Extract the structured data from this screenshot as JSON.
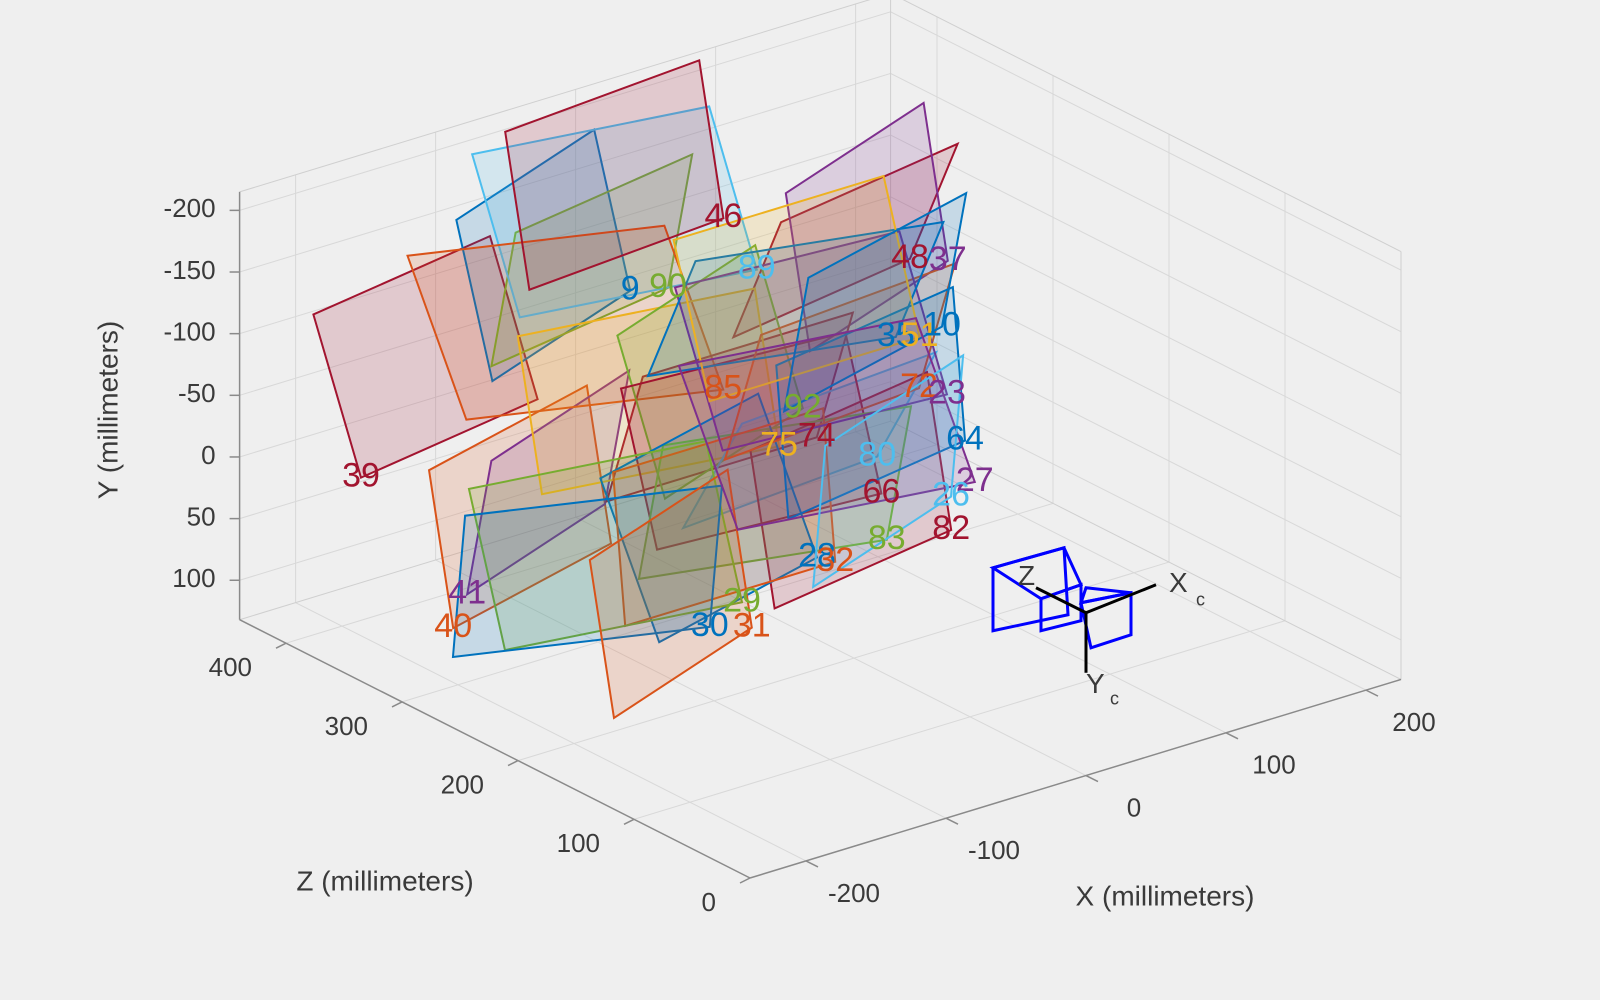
{
  "chart_data": {
    "type": "extrinsics3d",
    "xlabel": "X (millimeters)",
    "ylabel": "Y (millimeters)",
    "zlabel": "Z (millimeters)",
    "xlim": [
      -240,
      225
    ],
    "ylim": [
      -215,
      132
    ],
    "zlim": [
      0,
      440
    ],
    "xticks": [
      -200,
      -100,
      0,
      100,
      200
    ],
    "yticks": [
      -200,
      -150,
      -100,
      -50,
      0,
      50,
      100
    ],
    "zticks": [
      0,
      100,
      200,
      300,
      400
    ],
    "grid": true,
    "y_reversed": true,
    "board_size": [
      150,
      120
    ],
    "camera": {
      "origin": [
        0,
        0,
        0
      ],
      "color": "#0000ff",
      "z_label": "Z",
      "x_label": "X",
      "y_label": "Y",
      "subscript": "c"
    },
    "boards": [
      {
        "label": "39",
        "origin": [
          -203,
          1,
          380
        ],
        "tilt": [
          10,
          20
        ],
        "color": "#A2142F"
      },
      {
        "label": "40",
        "origin": [
          -162,
          123,
          350
        ],
        "tilt": [
          15,
          10
        ],
        "color": "#D95319"
      },
      {
        "label": "41",
        "origin": [
          -152,
          99,
          350
        ],
        "tilt": [
          20,
          -10
        ],
        "color": "#7E2F8E"
      },
      {
        "label": "9",
        "origin": [
          -77,
          -145,
          300
        ],
        "tilt": [
          200,
          15
        ],
        "color": "#0072BD"
      },
      {
        "label": "90",
        "origin": [
          -50,
          -138,
          300
        ],
        "tilt": [
          190,
          -10
        ],
        "color": "#77AC30"
      },
      {
        "label": "89",
        "origin": [
          -28,
          -169,
          250
        ],
        "tilt": [
          170,
          20
        ],
        "color": "#4DBEEE"
      },
      {
        "label": "48",
        "origin": [
          40,
          -178,
          200
        ],
        "tilt": [
          190,
          -20
        ],
        "color": "#A2142F"
      },
      {
        "label": "37",
        "origin": [
          67,
          -167,
          200
        ],
        "tilt": [
          200,
          10
        ],
        "color": "#7E2F8E"
      },
      {
        "label": "85",
        "origin": [
          -52,
          -80,
          250
        ],
        "tilt": [
          160,
          25
        ],
        "color": "#D95319"
      },
      {
        "label": "74",
        "origin": [
          -10,
          -41,
          220
        ],
        "tilt": [
          180,
          -15
        ],
        "color": "#A2142F"
      },
      {
        "label": "75",
        "origin": [
          -37,
          -43,
          220
        ],
        "tilt": [
          170,
          10
        ],
        "color": "#EDB120"
      },
      {
        "label": "92",
        "origin": [
          -20,
          -68,
          220
        ],
        "tilt": [
          200,
          20
        ],
        "color": "#77AC30"
      },
      {
        "label": "80",
        "origin": [
          0,
          -41,
          180
        ],
        "tilt": [
          185,
          -25
        ],
        "color": "#4DBEEE"
      },
      {
        "label": "66",
        "origin": [
          3,
          -10,
          180
        ],
        "tilt": [
          175,
          15
        ],
        "color": "#A2142F"
      },
      {
        "label": "82",
        "origin": [
          28,
          14,
          150
        ],
        "tilt": [
          190,
          10
        ],
        "color": "#A2142F"
      },
      {
        "label": "83",
        "origin": [
          -18,
          6,
          150
        ],
        "tilt": [
          165,
          -10
        ],
        "color": "#77AC30"
      },
      {
        "label": "28",
        "origin": [
          -43,
          26,
          180
        ],
        "tilt": [
          195,
          25
        ],
        "color": "#0072BD"
      },
      {
        "label": "32",
        "origin": [
          -30,
          34,
          180
        ],
        "tilt": [
          180,
          5
        ],
        "color": "#D95319"
      },
      {
        "label": "29",
        "origin": [
          -80,
          59,
          200
        ],
        "tilt": [
          170,
          15
        ],
        "color": "#77AC30"
      },
      {
        "label": "30",
        "origin": [
          -103,
          71,
          200
        ],
        "tilt": [
          160,
          -5
        ],
        "color": "#0072BD"
      },
      {
        "label": "31",
        "origin": [
          -73,
          82,
          200
        ],
        "tilt": [
          200,
          10
        ],
        "color": "#D95319"
      },
      {
        "label": "72",
        "origin": [
          5,
          -109,
          150
        ],
        "tilt": [
          185,
          -15
        ],
        "color": "#D95319"
      },
      {
        "label": "23",
        "origin": [
          25,
          -97,
          150
        ],
        "tilt": [
          175,
          20
        ],
        "color": "#7E2F8E"
      },
      {
        "label": "64",
        "origin": [
          13,
          -78,
          120
        ],
        "tilt": [
          190,
          5
        ],
        "color": "#0072BD"
      },
      {
        "label": "35",
        "origin": [
          5,
          -141,
          170
        ],
        "tilt": [
          165,
          -20
        ],
        "color": "#0072BD"
      },
      {
        "label": "51",
        "origin": [
          22,
          -135,
          170
        ],
        "tilt": [
          180,
          15
        ],
        "color": "#EDB120"
      },
      {
        "label": "10",
        "origin": [
          38,
          -138,
          170
        ],
        "tilt": [
          195,
          -10
        ],
        "color": "#0072BD"
      },
      {
        "label": "27",
        "origin": [
          20,
          -42,
          120
        ],
        "tilt": [
          170,
          25
        ],
        "color": "#7E2F8E"
      },
      {
        "label": "26",
        "origin": [
          3,
          -36,
          120
        ],
        "tilt": [
          200,
          -5
        ],
        "color": "#4DBEEE"
      },
      {
        "label": "46",
        "origin": [
          -27,
          -196,
          280
        ],
        "tilt": [
          185,
          10
        ],
        "color": "#A2142F"
      }
    ]
  }
}
